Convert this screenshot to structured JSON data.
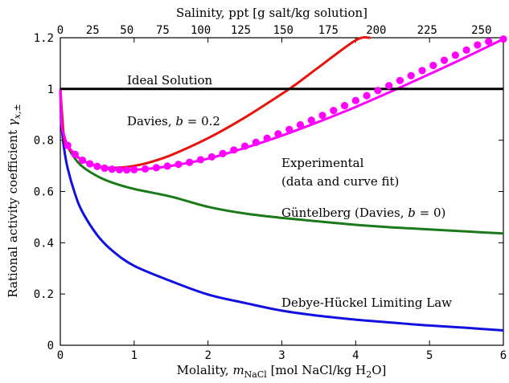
{
  "chart_data": {
    "type": "line",
    "xlabel": {
      "prefix": "Molality, ",
      "var": "m",
      "sub": "NaCl",
      "suffix_a": " [mol NaCl/kg H",
      "suffix_sub": "2",
      "suffix_b": "O]"
    },
    "ylabel": {
      "prefix": "Rational activity coefficient ",
      "var": "γ",
      "sub": "x,±"
    },
    "x2label": "Salinity, ppt [g salt/kg solution]",
    "xlim": [
      0,
      6
    ],
    "ylim": [
      0,
      1.2
    ],
    "xticks": [
      0,
      1,
      2,
      3,
      4,
      5,
      6
    ],
    "yticks": [
      0,
      0.2,
      0.4,
      0.6,
      0.8,
      1,
      1.2
    ],
    "xtick_labels": [
      "0",
      "1",
      "2",
      "3",
      "4",
      "5",
      "6"
    ],
    "ytick_labels": [
      "0",
      "0.2",
      "0.4",
      "0.6",
      "0.8",
      "1",
      "1.2"
    ],
    "x2ticks": [
      0,
      25,
      50,
      75,
      100,
      125,
      150,
      175,
      200,
      225,
      250
    ],
    "x2tick_labels": [
      "0",
      "25",
      "50",
      "75",
      "100",
      "125",
      "150",
      "175",
      "200",
      "225",
      "250"
    ],
    "grid": false,
    "series": [
      {
        "key": "ideal",
        "color": "#000000",
        "x": [
          0,
          6
        ],
        "y": [
          1,
          1
        ]
      },
      {
        "key": "davies",
        "color": "#e8130d",
        "x": [
          0,
          0.05,
          0.1,
          0.2,
          0.3,
          0.4,
          0.5,
          0.6,
          0.7,
          0.8,
          1.0,
          1.2,
          1.5,
          2.0,
          2.5,
          3.0,
          3.2,
          3.5,
          4.0,
          4.2
        ],
        "y": [
          1,
          0.81,
          0.775,
          0.742,
          0.722,
          0.708,
          0.699,
          0.694,
          0.692,
          0.693,
          0.7,
          0.713,
          0.742,
          0.808,
          0.889,
          0.981,
          1.02,
          1.085,
          1.19,
          1.2
        ]
      },
      {
        "key": "experimental",
        "color": "#ff00ff",
        "x": [
          0,
          0.02,
          0.05,
          0.1,
          0.2,
          0.3,
          0.4,
          0.5,
          0.6,
          0.7,
          0.8,
          0.9,
          1.0,
          1.2,
          1.5,
          2.0,
          2.5,
          3.0,
          3.5,
          4.0,
          4.5,
          5.0,
          5.5,
          6.0
        ],
        "y": [
          1,
          0.86,
          0.82,
          0.78,
          0.745,
          0.722,
          0.708,
          0.698,
          0.691,
          0.687,
          0.685,
          0.684,
          0.685,
          0.689,
          0.7,
          0.728,
          0.77,
          0.818,
          0.872,
          0.93,
          0.993,
          1.058,
          1.125,
          1.195
        ]
      },
      {
        "key": "guntelberg",
        "color": "#1a7a1a",
        "x": [
          0,
          0.02,
          0.05,
          0.1,
          0.2,
          0.3,
          0.5,
          0.7,
          1.0,
          1.5,
          2.0,
          2.5,
          3.0,
          3.5,
          4.0,
          4.5,
          5.0,
          5.5,
          6.0
        ],
        "y": [
          1,
          0.87,
          0.82,
          0.775,
          0.728,
          0.697,
          0.66,
          0.635,
          0.61,
          0.58,
          0.54,
          0.514,
          0.497,
          0.483,
          0.47,
          0.46,
          0.452,
          0.444,
          0.436
        ]
      },
      {
        "key": "debye_huckel",
        "color": "#1010e0",
        "x": [
          0,
          0.01,
          0.02,
          0.05,
          0.1,
          0.2,
          0.3,
          0.5,
          0.7,
          1.0,
          1.5,
          2.0,
          2.5,
          3.0,
          3.5,
          4.0,
          4.5,
          5.0,
          5.5,
          6.0
        ],
        "y": [
          1,
          0.88,
          0.85,
          0.77,
          0.69,
          0.59,
          0.52,
          0.43,
          0.37,
          0.31,
          0.25,
          0.198,
          0.165,
          0.135,
          0.115,
          0.1,
          0.088,
          0.077,
          0.068,
          0.058
        ]
      }
    ],
    "markers": {
      "series_key": "experimental",
      "color": "#ff00ff",
      "x": [
        0.1,
        0.2,
        0.3,
        0.4,
        0.5,
        0.6,
        0.7,
        0.8,
        0.9,
        1.0,
        1.15,
        1.3,
        1.45,
        1.6,
        1.75,
        1.9,
        2.05,
        2.2,
        2.35,
        2.5,
        2.65,
        2.8,
        2.95,
        3.1,
        3.25,
        3.4,
        3.55,
        3.7,
        3.85,
        4.0,
        4.15,
        4.3,
        4.45,
        4.6,
        4.75,
        4.9,
        5.05,
        5.2,
        5.35,
        5.5,
        5.65,
        5.8,
        6.0
      ],
      "y": [
        0.78,
        0.745,
        0.722,
        0.708,
        0.698,
        0.691,
        0.687,
        0.685,
        0.684,
        0.685,
        0.688,
        0.693,
        0.699,
        0.706,
        0.714,
        0.724,
        0.735,
        0.748,
        0.762,
        0.777,
        0.792,
        0.808,
        0.825,
        0.842,
        0.86,
        0.878,
        0.897,
        0.916,
        0.935,
        0.955,
        0.974,
        0.994,
        1.013,
        1.033,
        1.052,
        1.072,
        1.092,
        1.112,
        1.132,
        1.152,
        1.172,
        1.185,
        1.195
      ]
    },
    "annotations": {
      "ideal": "Ideal Solution",
      "davies_prefix": "Davies, ",
      "davies_var": "b",
      "davies_value": " = 0.2",
      "experimental_line1": "Experimental",
      "experimental_line2": "(data and curve fit)",
      "guntelberg_prefix": "Güntelberg (Davies, ",
      "guntelberg_var": "b",
      "guntelberg_value": " = 0)",
      "debye_huckel": "Debye-Hückel Limiting Law"
    }
  }
}
